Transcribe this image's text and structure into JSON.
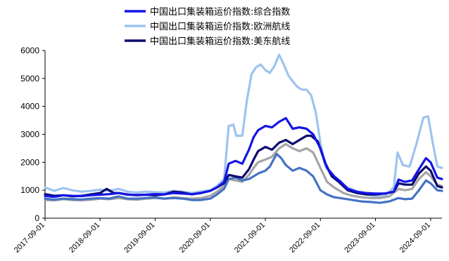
{
  "chart_data": {
    "type": "line",
    "title": "",
    "xlabel": "",
    "ylabel": "",
    "ylim": [
      0,
      6000
    ],
    "yticks": [
      0,
      1000,
      2000,
      3000,
      4000,
      5000,
      6000
    ],
    "xlim": [
      "2017-09-01",
      "2024-11-15"
    ],
    "xticks": [
      "2017-09-01",
      "2018-09-01",
      "2019-09-01",
      "2020-09-01",
      "2021-09-01",
      "2022-09-01",
      "2023-09-01",
      "2024-09-01"
    ],
    "legend_position": "top-center",
    "grid": false,
    "series": [
      {
        "name": "中国出口集装箱运价指数:综合指数",
        "color": "#1414e6",
        "points": [
          [
            "2017-09-01",
            800
          ],
          [
            "2017-11-01",
            760
          ],
          [
            "2018-01-01",
            820
          ],
          [
            "2018-03-01",
            800
          ],
          [
            "2018-05-01",
            790
          ],
          [
            "2018-07-01",
            820
          ],
          [
            "2018-09-01",
            840
          ],
          [
            "2018-11-01",
            860
          ],
          [
            "2019-01-01",
            900
          ],
          [
            "2019-03-01",
            840
          ],
          [
            "2019-05-01",
            830
          ],
          [
            "2019-07-01",
            840
          ],
          [
            "2019-09-01",
            860
          ],
          [
            "2019-11-01",
            850
          ],
          [
            "2020-01-01",
            900
          ],
          [
            "2020-03-01",
            880
          ],
          [
            "2020-05-01",
            860
          ],
          [
            "2020-07-01",
            900
          ],
          [
            "2020-09-01",
            980
          ],
          [
            "2020-10-15",
            1100
          ],
          [
            "2020-12-01",
            1300
          ],
          [
            "2021-01-01",
            1950
          ],
          [
            "2021-02-15",
            2050
          ],
          [
            "2021-04-01",
            1950
          ],
          [
            "2021-05-15",
            2450
          ],
          [
            "2021-06-15",
            2900
          ],
          [
            "2021-07-15",
            3150
          ],
          [
            "2021-09-01",
            3300
          ],
          [
            "2021-10-15",
            3250
          ],
          [
            "2021-12-01",
            3450
          ],
          [
            "2022-01-15",
            3580
          ],
          [
            "2022-03-01",
            3200
          ],
          [
            "2022-04-15",
            3250
          ],
          [
            "2022-06-01",
            3200
          ],
          [
            "2022-07-15",
            3000
          ],
          [
            "2022-09-01",
            2500
          ],
          [
            "2022-10-15",
            1800
          ],
          [
            "2022-12-01",
            1500
          ],
          [
            "2023-01-15",
            1300
          ],
          [
            "2023-03-01",
            1050
          ],
          [
            "2023-05-01",
            950
          ],
          [
            "2023-07-01",
            900
          ],
          [
            "2023-09-01",
            880
          ],
          [
            "2023-11-01",
            880
          ],
          [
            "2024-01-01",
            950
          ],
          [
            "2024-02-01",
            1380
          ],
          [
            "2024-03-15",
            1300
          ],
          [
            "2024-05-01",
            1350
          ],
          [
            "2024-06-15",
            1750
          ],
          [
            "2024-08-01",
            2150
          ],
          [
            "2024-09-01",
            2000
          ],
          [
            "2024-10-15",
            1450
          ],
          [
            "2024-11-15",
            1400
          ]
        ]
      },
      {
        "name": "中国出口集装箱运价指数:欧洲航线",
        "color": "#9dc3ef",
        "points": [
          [
            "2017-09-01",
            1100
          ],
          [
            "2017-11-01",
            980
          ],
          [
            "2018-01-01",
            1080
          ],
          [
            "2018-03-01",
            1000
          ],
          [
            "2018-05-01",
            950
          ],
          [
            "2018-07-01",
            980
          ],
          [
            "2018-09-01",
            1020
          ],
          [
            "2018-11-01",
            980
          ],
          [
            "2019-01-01",
            1050
          ],
          [
            "2019-03-01",
            950
          ],
          [
            "2019-05-01",
            920
          ],
          [
            "2019-07-01",
            950
          ],
          [
            "2019-09-01",
            930
          ],
          [
            "2019-11-01",
            920
          ],
          [
            "2020-01-01",
            980
          ],
          [
            "2020-03-01",
            950
          ],
          [
            "2020-05-01",
            900
          ],
          [
            "2020-07-01",
            960
          ],
          [
            "2020-09-01",
            1000
          ],
          [
            "2020-10-15",
            1150
          ],
          [
            "2020-12-01",
            1400
          ],
          [
            "2021-01-01",
            3300
          ],
          [
            "2021-02-01",
            3350
          ],
          [
            "2021-02-20",
            2950
          ],
          [
            "2021-04-01",
            2950
          ],
          [
            "2021-05-01",
            4200
          ],
          [
            "2021-06-01",
            5150
          ],
          [
            "2021-07-01",
            5400
          ],
          [
            "2021-08-01",
            5500
          ],
          [
            "2021-09-01",
            5300
          ],
          [
            "2021-10-01",
            5200
          ],
          [
            "2021-11-01",
            5450
          ],
          [
            "2021-12-01",
            5850
          ],
          [
            "2022-01-01",
            5500
          ],
          [
            "2022-02-01",
            5100
          ],
          [
            "2022-03-01",
            4900
          ],
          [
            "2022-04-01",
            4700
          ],
          [
            "2022-05-01",
            4600
          ],
          [
            "2022-06-01",
            4600
          ],
          [
            "2022-07-01",
            4400
          ],
          [
            "2022-08-01",
            3800
          ],
          [
            "2022-09-01",
            2700
          ],
          [
            "2022-10-01",
            1900
          ],
          [
            "2022-11-15",
            1500
          ],
          [
            "2023-01-01",
            1300
          ],
          [
            "2023-03-01",
            1100
          ],
          [
            "2023-05-01",
            950
          ],
          [
            "2023-07-01",
            850
          ],
          [
            "2023-09-01",
            780
          ],
          [
            "2023-11-01",
            780
          ],
          [
            "2024-01-01",
            1100
          ],
          [
            "2024-01-25",
            2350
          ],
          [
            "2024-03-01",
            1900
          ],
          [
            "2024-04-15",
            1850
          ],
          [
            "2024-06-01",
            2700
          ],
          [
            "2024-07-15",
            3600
          ],
          [
            "2024-08-15",
            3650
          ],
          [
            "2024-09-15",
            2700
          ],
          [
            "2024-10-15",
            1850
          ],
          [
            "2024-11-15",
            1800
          ]
        ]
      },
      {
        "name": "中国出口集装箱运价指数:美东航线",
        "color": "#0a0a6e",
        "points": [
          [
            "2017-09-01",
            860
          ],
          [
            "2017-11-01",
            800
          ],
          [
            "2018-01-01",
            820
          ],
          [
            "2018-03-01",
            780
          ],
          [
            "2018-05-01",
            800
          ],
          [
            "2018-07-01",
            850
          ],
          [
            "2018-09-01",
            900
          ],
          [
            "2018-10-15",
            1050
          ],
          [
            "2018-12-01",
            900
          ],
          [
            "2019-01-01",
            900
          ],
          [
            "2019-03-01",
            850
          ],
          [
            "2019-05-01",
            820
          ],
          [
            "2019-07-01",
            840
          ],
          [
            "2019-09-01",
            820
          ],
          [
            "2019-11-01",
            850
          ],
          [
            "2020-01-01",
            950
          ],
          [
            "2020-03-01",
            920
          ],
          [
            "2020-05-01",
            850
          ],
          [
            "2020-07-01",
            900
          ],
          [
            "2020-09-01",
            980
          ],
          [
            "2020-10-15",
            1100
          ],
          [
            "2020-12-01",
            1250
          ],
          [
            "2021-01-01",
            1550
          ],
          [
            "2021-02-15",
            1500
          ],
          [
            "2021-04-01",
            1450
          ],
          [
            "2021-05-15",
            1750
          ],
          [
            "2021-06-15",
            2100
          ],
          [
            "2021-07-15",
            2400
          ],
          [
            "2021-09-01",
            2550
          ],
          [
            "2021-10-15",
            2450
          ],
          [
            "2021-12-01",
            2700
          ],
          [
            "2022-01-15",
            2800
          ],
          [
            "2022-03-01",
            2650
          ],
          [
            "2022-04-15",
            2800
          ],
          [
            "2022-06-01",
            2950
          ],
          [
            "2022-07-01",
            2950
          ],
          [
            "2022-08-15",
            2750
          ],
          [
            "2022-10-01",
            2000
          ],
          [
            "2022-11-15",
            1500
          ],
          [
            "2023-01-01",
            1300
          ],
          [
            "2023-03-01",
            1000
          ],
          [
            "2023-05-01",
            900
          ],
          [
            "2023-07-01",
            850
          ],
          [
            "2023-09-01",
            850
          ],
          [
            "2023-11-01",
            880
          ],
          [
            "2024-01-01",
            950
          ],
          [
            "2024-02-01",
            1250
          ],
          [
            "2024-03-15",
            1200
          ],
          [
            "2024-05-01",
            1200
          ],
          [
            "2024-06-15",
            1600
          ],
          [
            "2024-08-01",
            1850
          ],
          [
            "2024-09-01",
            1700
          ],
          [
            "2024-10-15",
            1150
          ],
          [
            "2024-11-15",
            1100
          ]
        ]
      },
      {
        "name": "",
        "color": "#4472c4",
        "points": [
          [
            "2017-09-01",
            700
          ],
          [
            "2017-11-01",
            660
          ],
          [
            "2018-01-01",
            700
          ],
          [
            "2018-03-01",
            680
          ],
          [
            "2018-05-01",
            670
          ],
          [
            "2018-07-01",
            700
          ],
          [
            "2018-09-01",
            720
          ],
          [
            "2018-11-01",
            700
          ],
          [
            "2019-01-01",
            780
          ],
          [
            "2019-03-01",
            700
          ],
          [
            "2019-05-01",
            700
          ],
          [
            "2019-07-01",
            720
          ],
          [
            "2019-09-01",
            740
          ],
          [
            "2019-11-01",
            700
          ],
          [
            "2020-01-01",
            720
          ],
          [
            "2020-03-01",
            700
          ],
          [
            "2020-05-01",
            650
          ],
          [
            "2020-07-01",
            650
          ],
          [
            "2020-09-01",
            700
          ],
          [
            "2020-10-15",
            850
          ],
          [
            "2020-12-01",
            1050
          ],
          [
            "2021-01-01",
            1400
          ],
          [
            "2021-02-15",
            1450
          ],
          [
            "2021-04-01",
            1350
          ],
          [
            "2021-05-15",
            1400
          ],
          [
            "2021-06-15",
            1500
          ],
          [
            "2021-07-15",
            1600
          ],
          [
            "2021-09-01",
            1700
          ],
          [
            "2021-10-01",
            1850
          ],
          [
            "2021-11-15",
            2300
          ],
          [
            "2021-12-15",
            2150
          ],
          [
            "2022-01-15",
            1900
          ],
          [
            "2022-03-01",
            1700
          ],
          [
            "2022-04-15",
            1800
          ],
          [
            "2022-06-01",
            1700
          ],
          [
            "2022-07-15",
            1500
          ],
          [
            "2022-09-01",
            1000
          ],
          [
            "2022-10-15",
            850
          ],
          [
            "2022-12-01",
            750
          ],
          [
            "2023-02-01",
            700
          ],
          [
            "2023-04-01",
            650
          ],
          [
            "2023-06-01",
            600
          ],
          [
            "2023-08-01",
            580
          ],
          [
            "2023-10-01",
            550
          ],
          [
            "2023-12-01",
            600
          ],
          [
            "2024-02-01",
            720
          ],
          [
            "2024-03-15",
            680
          ],
          [
            "2024-05-01",
            700
          ],
          [
            "2024-06-15",
            1000
          ],
          [
            "2024-08-01",
            1350
          ],
          [
            "2024-09-01",
            1250
          ],
          [
            "2024-10-15",
            1000
          ],
          [
            "2024-11-15",
            980
          ]
        ]
      },
      {
        "name": "",
        "color": "#a5a5a5",
        "points": [
          [
            "2017-09-01",
            650
          ],
          [
            "2017-11-01",
            640
          ],
          [
            "2018-01-01",
            680
          ],
          [
            "2018-03-01",
            650
          ],
          [
            "2018-05-01",
            640
          ],
          [
            "2018-07-01",
            660
          ],
          [
            "2018-09-01",
            700
          ],
          [
            "2018-11-01",
            680
          ],
          [
            "2019-01-01",
            720
          ],
          [
            "2019-03-01",
            680
          ],
          [
            "2019-05-01",
            660
          ],
          [
            "2019-07-01",
            700
          ],
          [
            "2019-09-01",
            720
          ],
          [
            "2019-11-01",
            700
          ],
          [
            "2020-01-01",
            750
          ],
          [
            "2020-03-01",
            720
          ],
          [
            "2020-05-01",
            700
          ],
          [
            "2020-07-01",
            720
          ],
          [
            "2020-09-01",
            800
          ],
          [
            "2020-10-15",
            950
          ],
          [
            "2020-12-01",
            1150
          ],
          [
            "2021-01-01",
            1400
          ],
          [
            "2021-02-15",
            1350
          ],
          [
            "2021-04-01",
            1300
          ],
          [
            "2021-05-15",
            1550
          ],
          [
            "2021-06-15",
            1800
          ],
          [
            "2021-07-15",
            2000
          ],
          [
            "2021-09-01",
            2100
          ],
          [
            "2021-10-15",
            2200
          ],
          [
            "2021-12-01",
            2500
          ],
          [
            "2022-01-15",
            2650
          ],
          [
            "2022-03-01",
            2500
          ],
          [
            "2022-04-15",
            2400
          ],
          [
            "2022-06-01",
            2500
          ],
          [
            "2022-07-15",
            2350
          ],
          [
            "2022-09-01",
            1800
          ],
          [
            "2022-10-15",
            1300
          ],
          [
            "2022-12-01",
            1100
          ],
          [
            "2023-02-01",
            900
          ],
          [
            "2023-04-01",
            800
          ],
          [
            "2023-06-01",
            750
          ],
          [
            "2023-08-01",
            720
          ],
          [
            "2023-10-01",
            720
          ],
          [
            "2023-12-01",
            780
          ],
          [
            "2024-02-01",
            1050
          ],
          [
            "2024-03-15",
            1000
          ],
          [
            "2024-05-01",
            1050
          ],
          [
            "2024-06-15",
            1400
          ],
          [
            "2024-08-01",
            1650
          ],
          [
            "2024-09-01",
            1500
          ],
          [
            "2024-10-15",
            1200
          ],
          [
            "2024-11-15",
            1150
          ]
        ]
      }
    ]
  }
}
